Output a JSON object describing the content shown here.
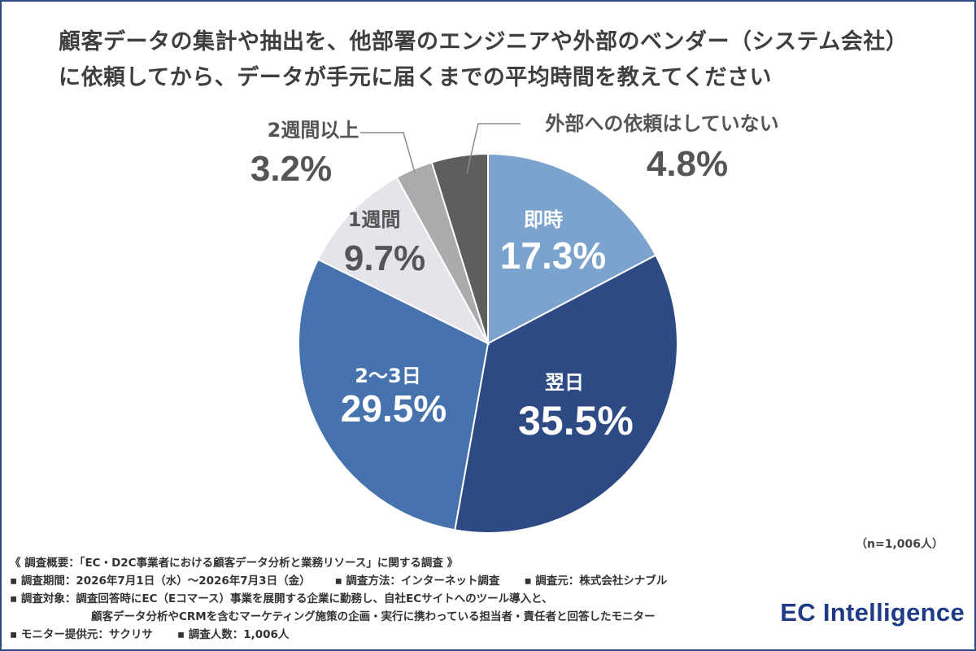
{
  "title_line1": "顧客データの集計や抽出を、他部署のエンジニアや外部のベンダー（システム会社）",
  "title_line2": "に依頼してから、データが手元に届くまでの平均時間を教えてください",
  "n_note": "（n=1,006人）",
  "footer": {
    "summary": "《 調査概要：「EC・D2C事業者における顧客データ分析と業務リソース」に関する調査 》",
    "period": "▪ 調査期間：2026年7月1日（水）〜2026年7月3日（金）",
    "method": "▪ 調査方法：インターネット調査",
    "source": "▪ 調査元：株式会社シナブル",
    "target1": "▪ 調査対象：調査回答時にEC（Eコマース）事業を展開する企業に勤務し、自社ECサイトへのツール導入と、",
    "target2": "顧客データ分析やCRMを含むマーケティング施策の企画・実行に携わっている担当者・責任者と回答したモニター",
    "provider": "▪ モニター提供元：サクリサ",
    "count": "▪ 調査人数：1,006人"
  },
  "brand": "EC Intelligence",
  "chart_data": {
    "type": "pie",
    "title": "顧客データの集計や抽出を、他部署のエンジニアや外部のベンダー（システム会社）に依頼してから、データが手元に届くまでの平均時間を教えてください",
    "slices": [
      {
        "label": "即時",
        "value": 17.3,
        "display": "17.3%",
        "color": "#7ba3ce",
        "label_inside": true
      },
      {
        "label": "翌日",
        "value": 35.5,
        "display": "35.5%",
        "color": "#2e4a85",
        "label_inside": true
      },
      {
        "label": "2〜3日",
        "value": 29.5,
        "display": "29.5%",
        "color": "#4672ad",
        "label_inside": true
      },
      {
        "label": "1週間",
        "value": 9.7,
        "display": "9.7%",
        "color": "#e4e4ea",
        "label_inside": false
      },
      {
        "label": "2週間以上",
        "value": 3.2,
        "display": "3.2%",
        "color": "#ababab",
        "label_inside": false
      },
      {
        "label": "外部への依頼はしていない",
        "value": 4.8,
        "display": "4.8%",
        "color": "#5e5e5e",
        "label_inside": false
      }
    ],
    "start": "12 o'clock",
    "direction": "clockwise",
    "legend": "none"
  }
}
